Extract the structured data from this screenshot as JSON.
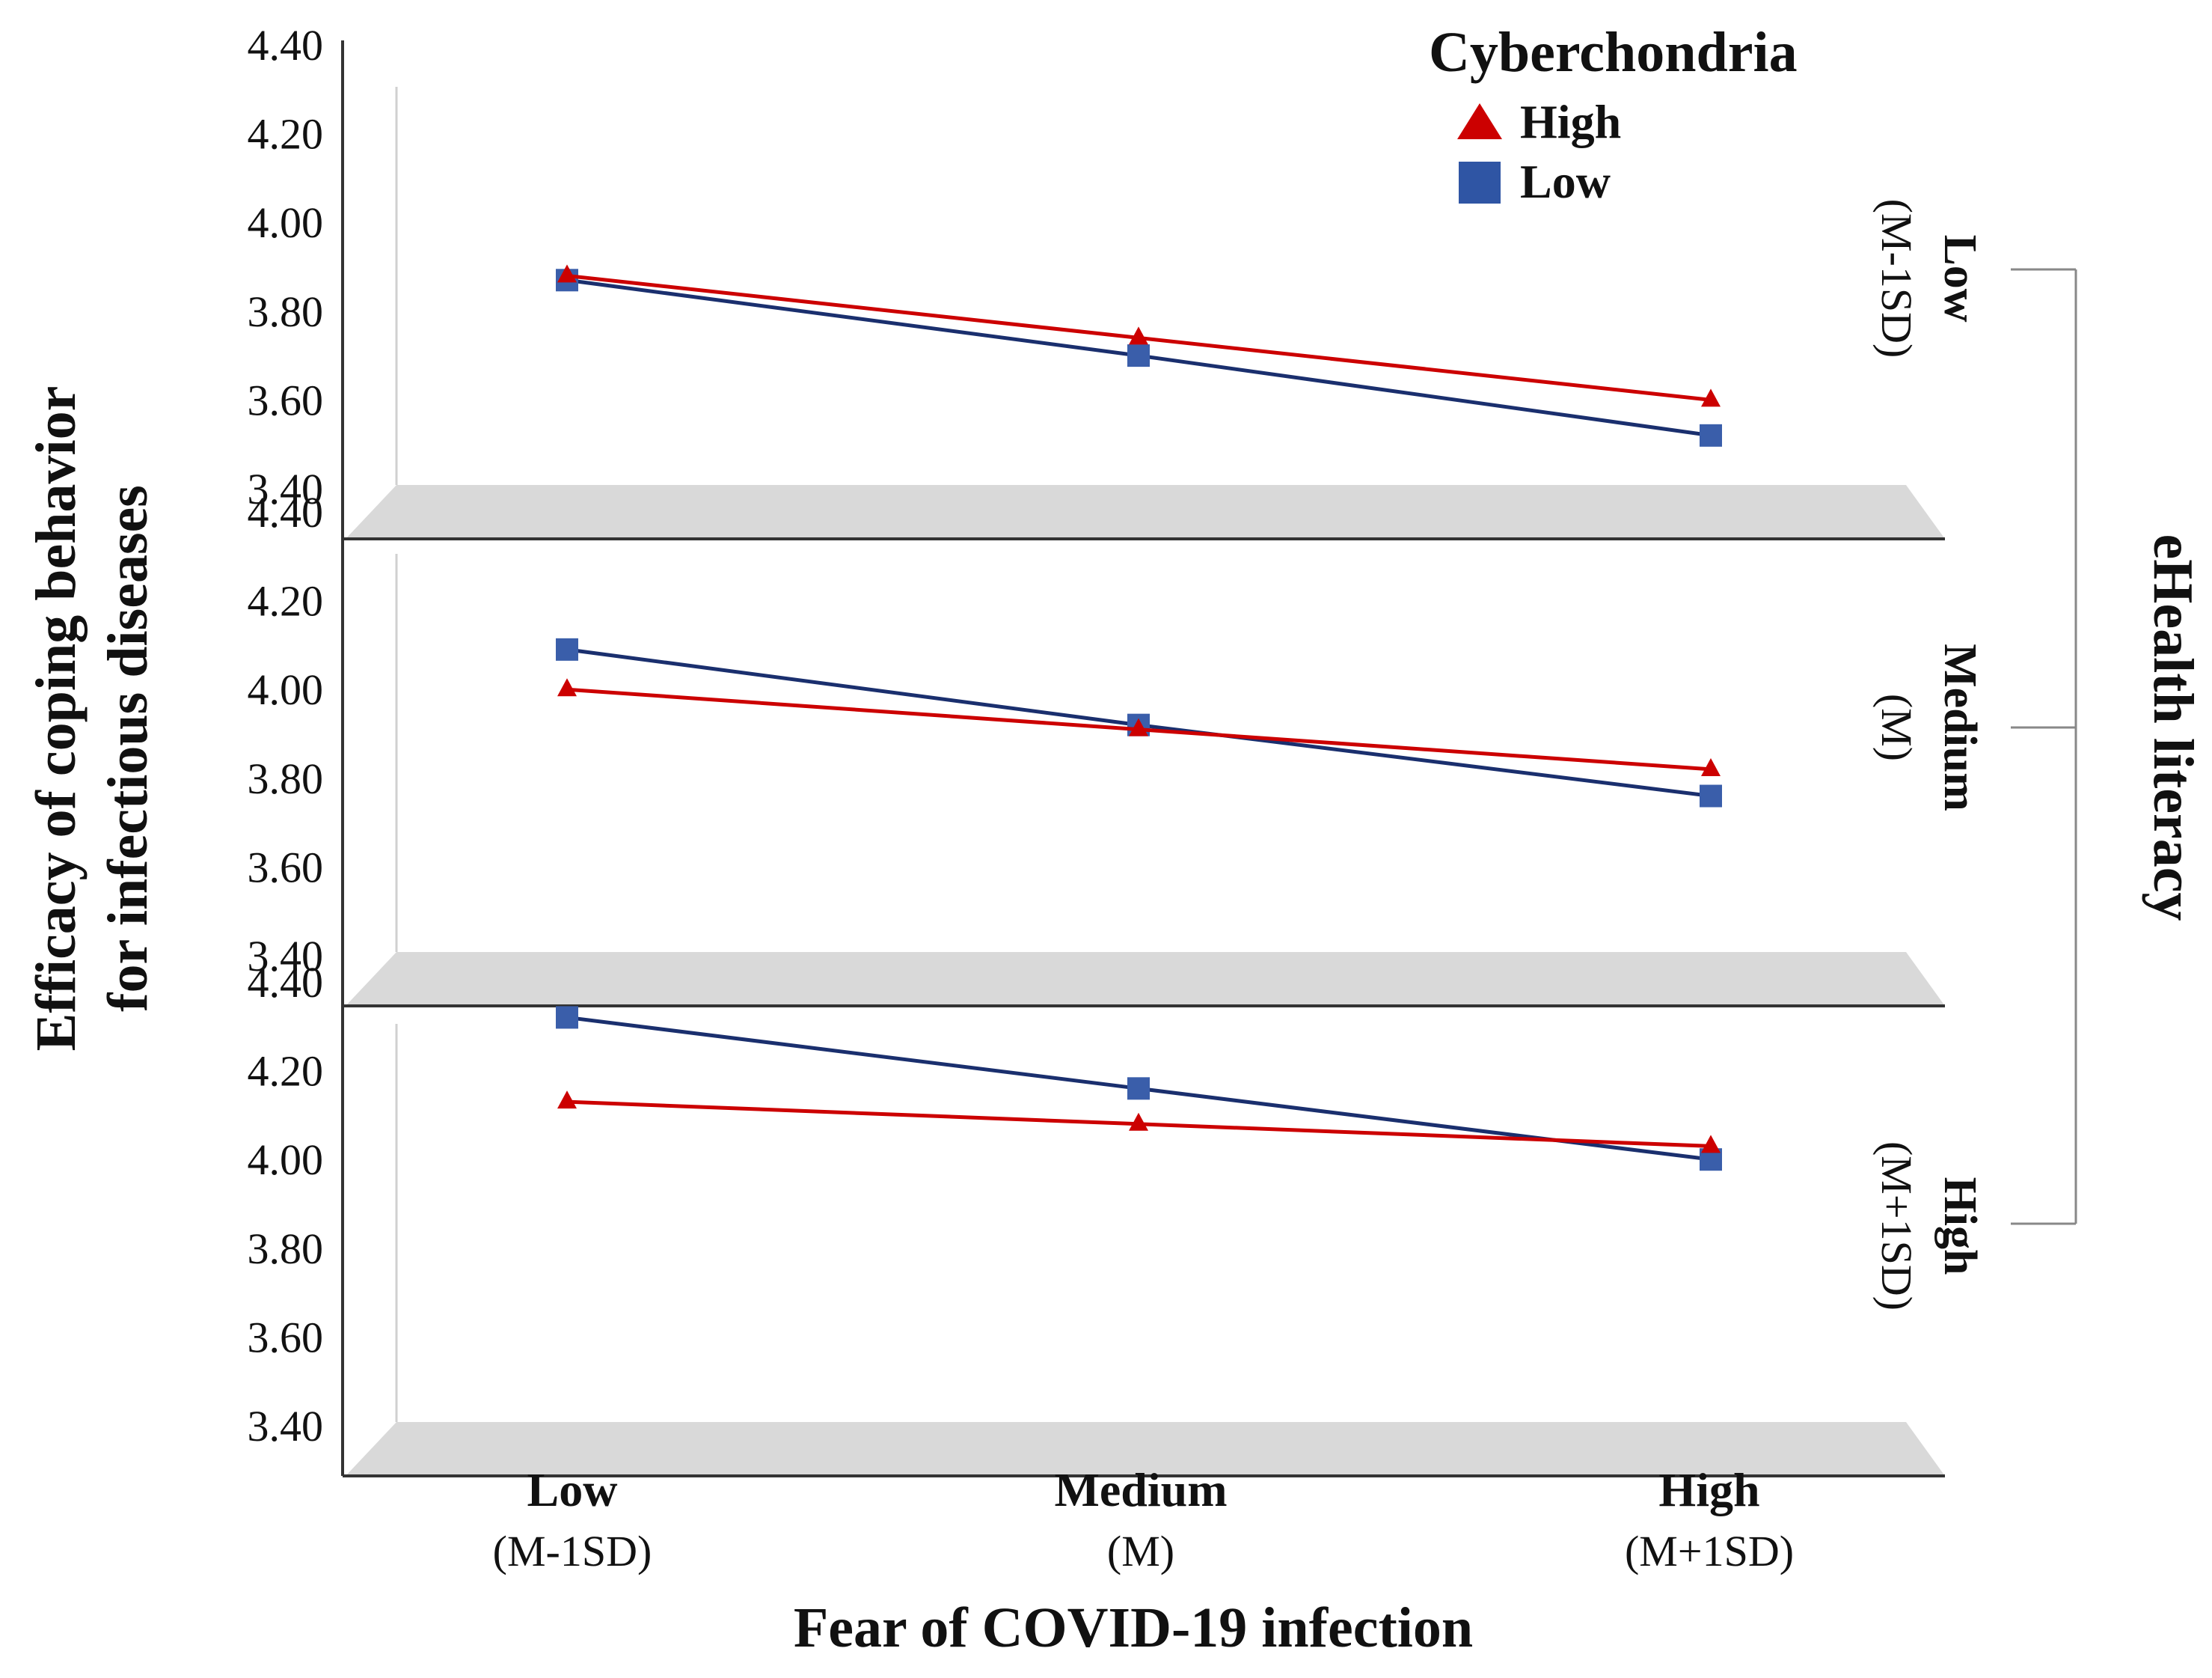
{
  "chart_data": {
    "type": "line",
    "x_title": "Fear of COVID-19 infection",
    "y_title_lines": [
      "Efficacy of coping behavior",
      "for infectious diseases"
    ],
    "facet_title": "eHealth literacy",
    "categories": [
      {
        "name": "Low",
        "sub": "(M-1SD)"
      },
      {
        "name": "Medium",
        "sub": "(M)"
      },
      {
        "name": "High",
        "sub": "(M+1SD)"
      }
    ],
    "yticks": [
      "4.40",
      "4.20",
      "4.00",
      "3.80",
      "3.60",
      "3.40"
    ],
    "ylim": [
      3.4,
      4.4
    ],
    "legend": {
      "title": "Cyberchondria",
      "items": [
        {
          "label": "High",
          "color": "#cc0000",
          "marker": "triangle"
        },
        {
          "label": "Low",
          "color": "#2f55a4",
          "marker": "square"
        }
      ]
    },
    "line_colors": {
      "High": "#cc0000",
      "Low": "#1a2f6e"
    },
    "panel_fill": "#d9d9d9",
    "panels": [
      {
        "name": "Low",
        "sub": "(M-1SD)",
        "series": [
          {
            "name": "High",
            "values": [
              3.88,
              3.74,
              3.6
            ]
          },
          {
            "name": "Low",
            "values": [
              3.87,
              3.7,
              3.52
            ]
          }
        ]
      },
      {
        "name": "Medium",
        "sub": "(M)",
        "series": [
          {
            "name": "High",
            "values": [
              4.0,
              3.91,
              3.82
            ]
          },
          {
            "name": "Low",
            "values": [
              4.09,
              3.92,
              3.76
            ]
          }
        ]
      },
      {
        "name": "High",
        "sub": "(M+1SD)",
        "series": [
          {
            "name": "High",
            "values": [
              4.13,
              4.08,
              4.03
            ]
          },
          {
            "name": "Low",
            "values": [
              4.32,
              4.16,
              4.0
            ]
          }
        ]
      }
    ]
  }
}
